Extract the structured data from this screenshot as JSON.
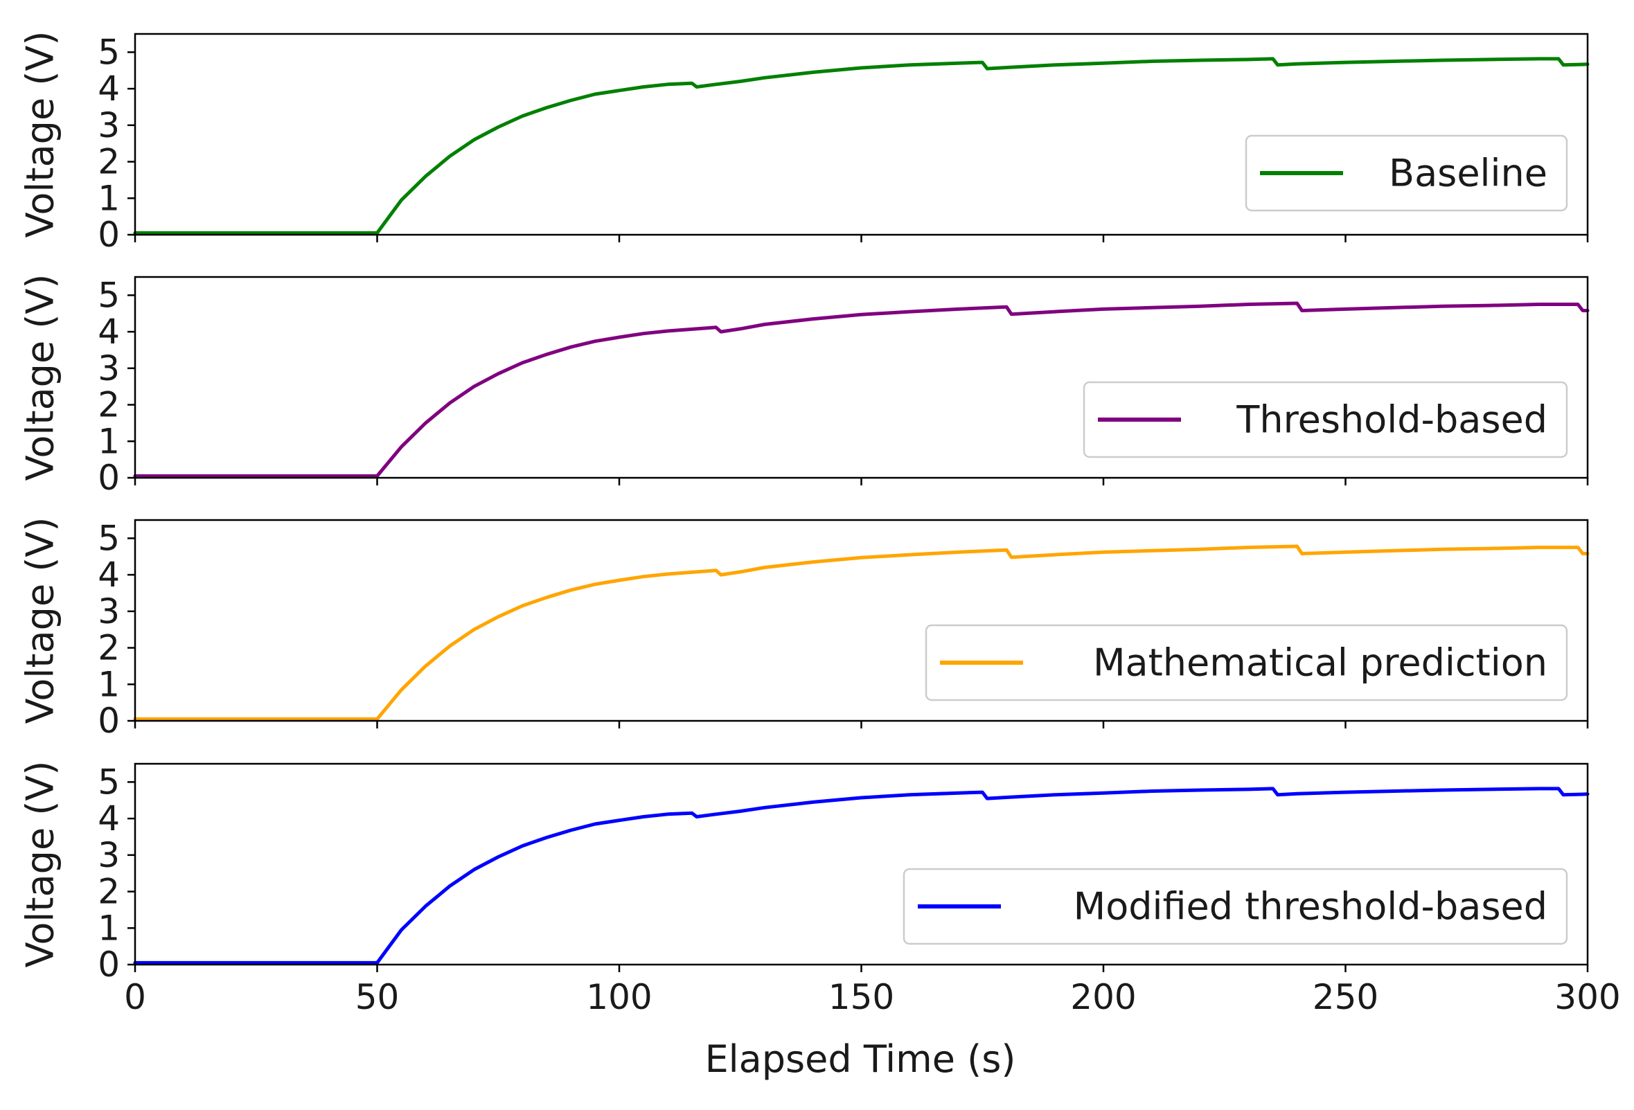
{
  "chart_data": [
    {
      "type": "line",
      "ylabel": "Voltage (V)",
      "xlabel": "",
      "xlim": [
        0,
        300
      ],
      "ylim": [
        0,
        5.5
      ],
      "xticks": [
        "0",
        "50",
        "100",
        "150",
        "200",
        "250",
        "300"
      ],
      "yticks": [
        "0",
        "1",
        "2",
        "3",
        "4",
        "5"
      ],
      "legend_position": "right",
      "series": [
        {
          "name": "Baseline",
          "color": "#008000",
          "x": [
            0,
            50,
            55,
            60,
            65,
            70,
            75,
            80,
            85,
            90,
            95,
            100,
            105,
            110,
            115,
            116,
            120,
            125,
            130,
            140,
            150,
            160,
            170,
            175,
            176,
            180,
            190,
            200,
            210,
            220,
            230,
            235,
            236,
            240,
            250,
            260,
            270,
            280,
            290,
            294,
            295,
            300
          ],
          "y": [
            0.05,
            0.05,
            0.95,
            1.6,
            2.15,
            2.6,
            2.95,
            3.25,
            3.48,
            3.68,
            3.85,
            3.95,
            4.05,
            4.12,
            4.15,
            4.05,
            4.12,
            4.2,
            4.3,
            4.45,
            4.57,
            4.65,
            4.7,
            4.72,
            4.55,
            4.58,
            4.65,
            4.7,
            4.75,
            4.78,
            4.8,
            4.82,
            4.65,
            4.68,
            4.72,
            4.75,
            4.78,
            4.8,
            4.82,
            4.82,
            4.65,
            4.67
          ]
        }
      ]
    },
    {
      "type": "line",
      "ylabel": "Voltage (V)",
      "xlabel": "",
      "xlim": [
        0,
        300
      ],
      "ylim": [
        0,
        5.5
      ],
      "xticks": [
        "0",
        "50",
        "100",
        "150",
        "200",
        "250",
        "300"
      ],
      "yticks": [
        "0",
        "1",
        "2",
        "3",
        "4",
        "5"
      ],
      "legend_position": "right",
      "series": [
        {
          "name": "Threshold-based",
          "color": "#800080",
          "x": [
            0,
            50,
            55,
            60,
            65,
            70,
            75,
            80,
            85,
            90,
            95,
            100,
            105,
            110,
            115,
            120,
            121,
            125,
            130,
            140,
            150,
            160,
            170,
            180,
            181,
            190,
            200,
            210,
            220,
            230,
            240,
            241,
            250,
            260,
            270,
            280,
            290,
            298,
            299,
            300
          ],
          "y": [
            0.05,
            0.05,
            0.85,
            1.5,
            2.05,
            2.5,
            2.85,
            3.15,
            3.38,
            3.58,
            3.74,
            3.85,
            3.95,
            4.02,
            4.07,
            4.12,
            4.0,
            4.08,
            4.2,
            4.35,
            4.47,
            4.55,
            4.62,
            4.68,
            4.48,
            4.55,
            4.62,
            4.66,
            4.7,
            4.75,
            4.78,
            4.58,
            4.62,
            4.66,
            4.7,
            4.72,
            4.75,
            4.75,
            4.58,
            4.58
          ]
        }
      ]
    },
    {
      "type": "line",
      "ylabel": "Voltage (V)",
      "xlabel": "",
      "xlim": [
        0,
        300
      ],
      "ylim": [
        0,
        5.5
      ],
      "xticks": [
        "0",
        "50",
        "100",
        "150",
        "200",
        "250",
        "300"
      ],
      "yticks": [
        "0",
        "1",
        "2",
        "3",
        "4",
        "5"
      ],
      "legend_position": "right",
      "series": [
        {
          "name": "Mathematical prediction",
          "color": "#FFA500",
          "x": [
            0,
            50,
            55,
            60,
            65,
            70,
            75,
            80,
            85,
            90,
            95,
            100,
            105,
            110,
            115,
            120,
            121,
            125,
            130,
            140,
            150,
            160,
            170,
            180,
            181,
            190,
            200,
            210,
            220,
            230,
            240,
            241,
            250,
            260,
            270,
            280,
            290,
            298,
            299,
            300
          ],
          "y": [
            0.05,
            0.05,
            0.85,
            1.5,
            2.05,
            2.5,
            2.85,
            3.15,
            3.38,
            3.58,
            3.74,
            3.85,
            3.95,
            4.02,
            4.07,
            4.12,
            4.0,
            4.08,
            4.2,
            4.35,
            4.47,
            4.55,
            4.62,
            4.68,
            4.48,
            4.55,
            4.62,
            4.66,
            4.7,
            4.75,
            4.78,
            4.58,
            4.62,
            4.66,
            4.7,
            4.72,
            4.75,
            4.75,
            4.58,
            4.58
          ]
        }
      ]
    },
    {
      "type": "line",
      "ylabel": "Voltage (V)",
      "xlabel": "Elapsed Time (s)",
      "xlim": [
        0,
        300
      ],
      "ylim": [
        0,
        5.5
      ],
      "xticks": [
        "0",
        "50",
        "100",
        "150",
        "200",
        "250",
        "300"
      ],
      "yticks": [
        "0",
        "1",
        "2",
        "3",
        "4",
        "5"
      ],
      "legend_position": "right",
      "series": [
        {
          "name": "Modified threshold-based",
          "color": "#0000FF",
          "x": [
            0,
            50,
            55,
            60,
            65,
            70,
            75,
            80,
            85,
            90,
            95,
            100,
            105,
            110,
            115,
            116,
            120,
            125,
            130,
            140,
            150,
            160,
            170,
            175,
            176,
            180,
            190,
            200,
            210,
            220,
            230,
            235,
            236,
            240,
            250,
            260,
            270,
            280,
            290,
            294,
            295,
            300
          ],
          "y": [
            0.05,
            0.05,
            0.95,
            1.6,
            2.15,
            2.6,
            2.95,
            3.25,
            3.48,
            3.68,
            3.85,
            3.95,
            4.05,
            4.12,
            4.15,
            4.05,
            4.12,
            4.2,
            4.3,
            4.45,
            4.57,
            4.65,
            4.7,
            4.72,
            4.55,
            4.58,
            4.65,
            4.7,
            4.75,
            4.78,
            4.8,
            4.82,
            4.65,
            4.68,
            4.72,
            4.75,
            4.78,
            4.8,
            4.82,
            4.82,
            4.65,
            4.67
          ]
        }
      ]
    }
  ]
}
